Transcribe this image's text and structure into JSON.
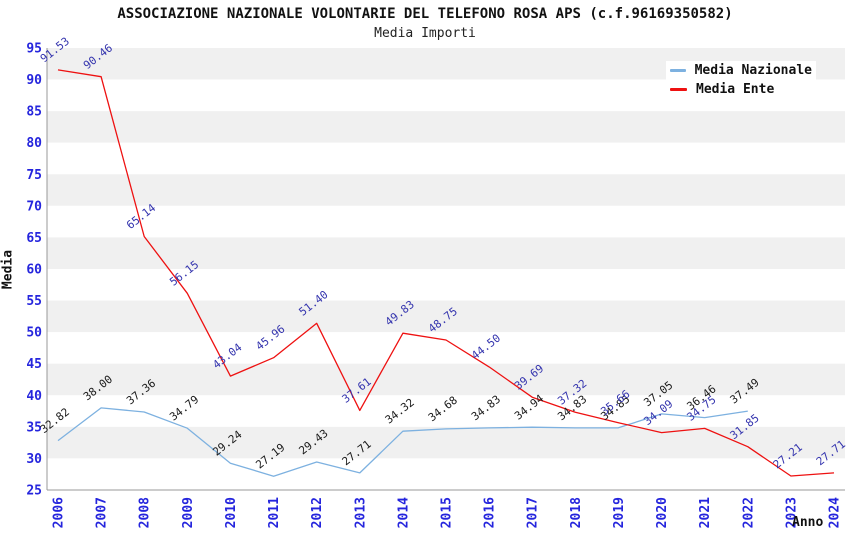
{
  "page": {
    "title": "ASSOCIAZIONE NAZIONALE VOLONTARIE DEL TELEFONO ROSA APS (c.f.96169350582)",
    "subtitle": "Media Importi"
  },
  "axes": {
    "y_title": "Media",
    "x_title": "Anno",
    "tick_color": "#2525dd"
  },
  "plot_style": {
    "band_gray": "#f0f0f0",
    "band_white": "#ffffff",
    "axis_line_color": "#999999",
    "legend_row1_bg": "#ffffff"
  },
  "chart_data": {
    "type": "line",
    "title": "ASSOCIAZIONE NAZIONALE VOLONTARIE DEL TELEFONO ROSA APS (c.f.96169350582)",
    "subtitle": "Media Importi",
    "xlabel": "Anno",
    "ylabel": "Media",
    "x": [
      2006,
      2007,
      2008,
      2009,
      2010,
      2011,
      2012,
      2013,
      2014,
      2015,
      2016,
      2017,
      2018,
      2019,
      2020,
      2021,
      2022,
      2023,
      2024
    ],
    "ylim": [
      25,
      95
    ],
    "ytick_step": 5,
    "grid": "alternating-horizontal-bands",
    "legend_position": "top-right",
    "point_labels": true,
    "series": [
      {
        "name": "Media Nazionale",
        "color": "#7db1e0",
        "label_color": "#1a1a1a",
        "values": [
          32.82,
          38.0,
          37.36,
          34.79,
          29.24,
          27.19,
          29.43,
          27.71,
          34.32,
          34.68,
          34.83,
          34.94,
          34.83,
          34.85,
          37.05,
          36.46,
          37.49,
          null,
          null
        ]
      },
      {
        "name": "Media Ente",
        "color": "#ee1111",
        "label_color": "#3434ae",
        "values": [
          91.53,
          90.46,
          65.14,
          56.15,
          43.04,
          45.96,
          51.4,
          37.61,
          49.83,
          48.75,
          44.5,
          39.69,
          37.32,
          35.66,
          34.09,
          34.75,
          31.85,
          27.21,
          27.71
        ]
      }
    ]
  }
}
